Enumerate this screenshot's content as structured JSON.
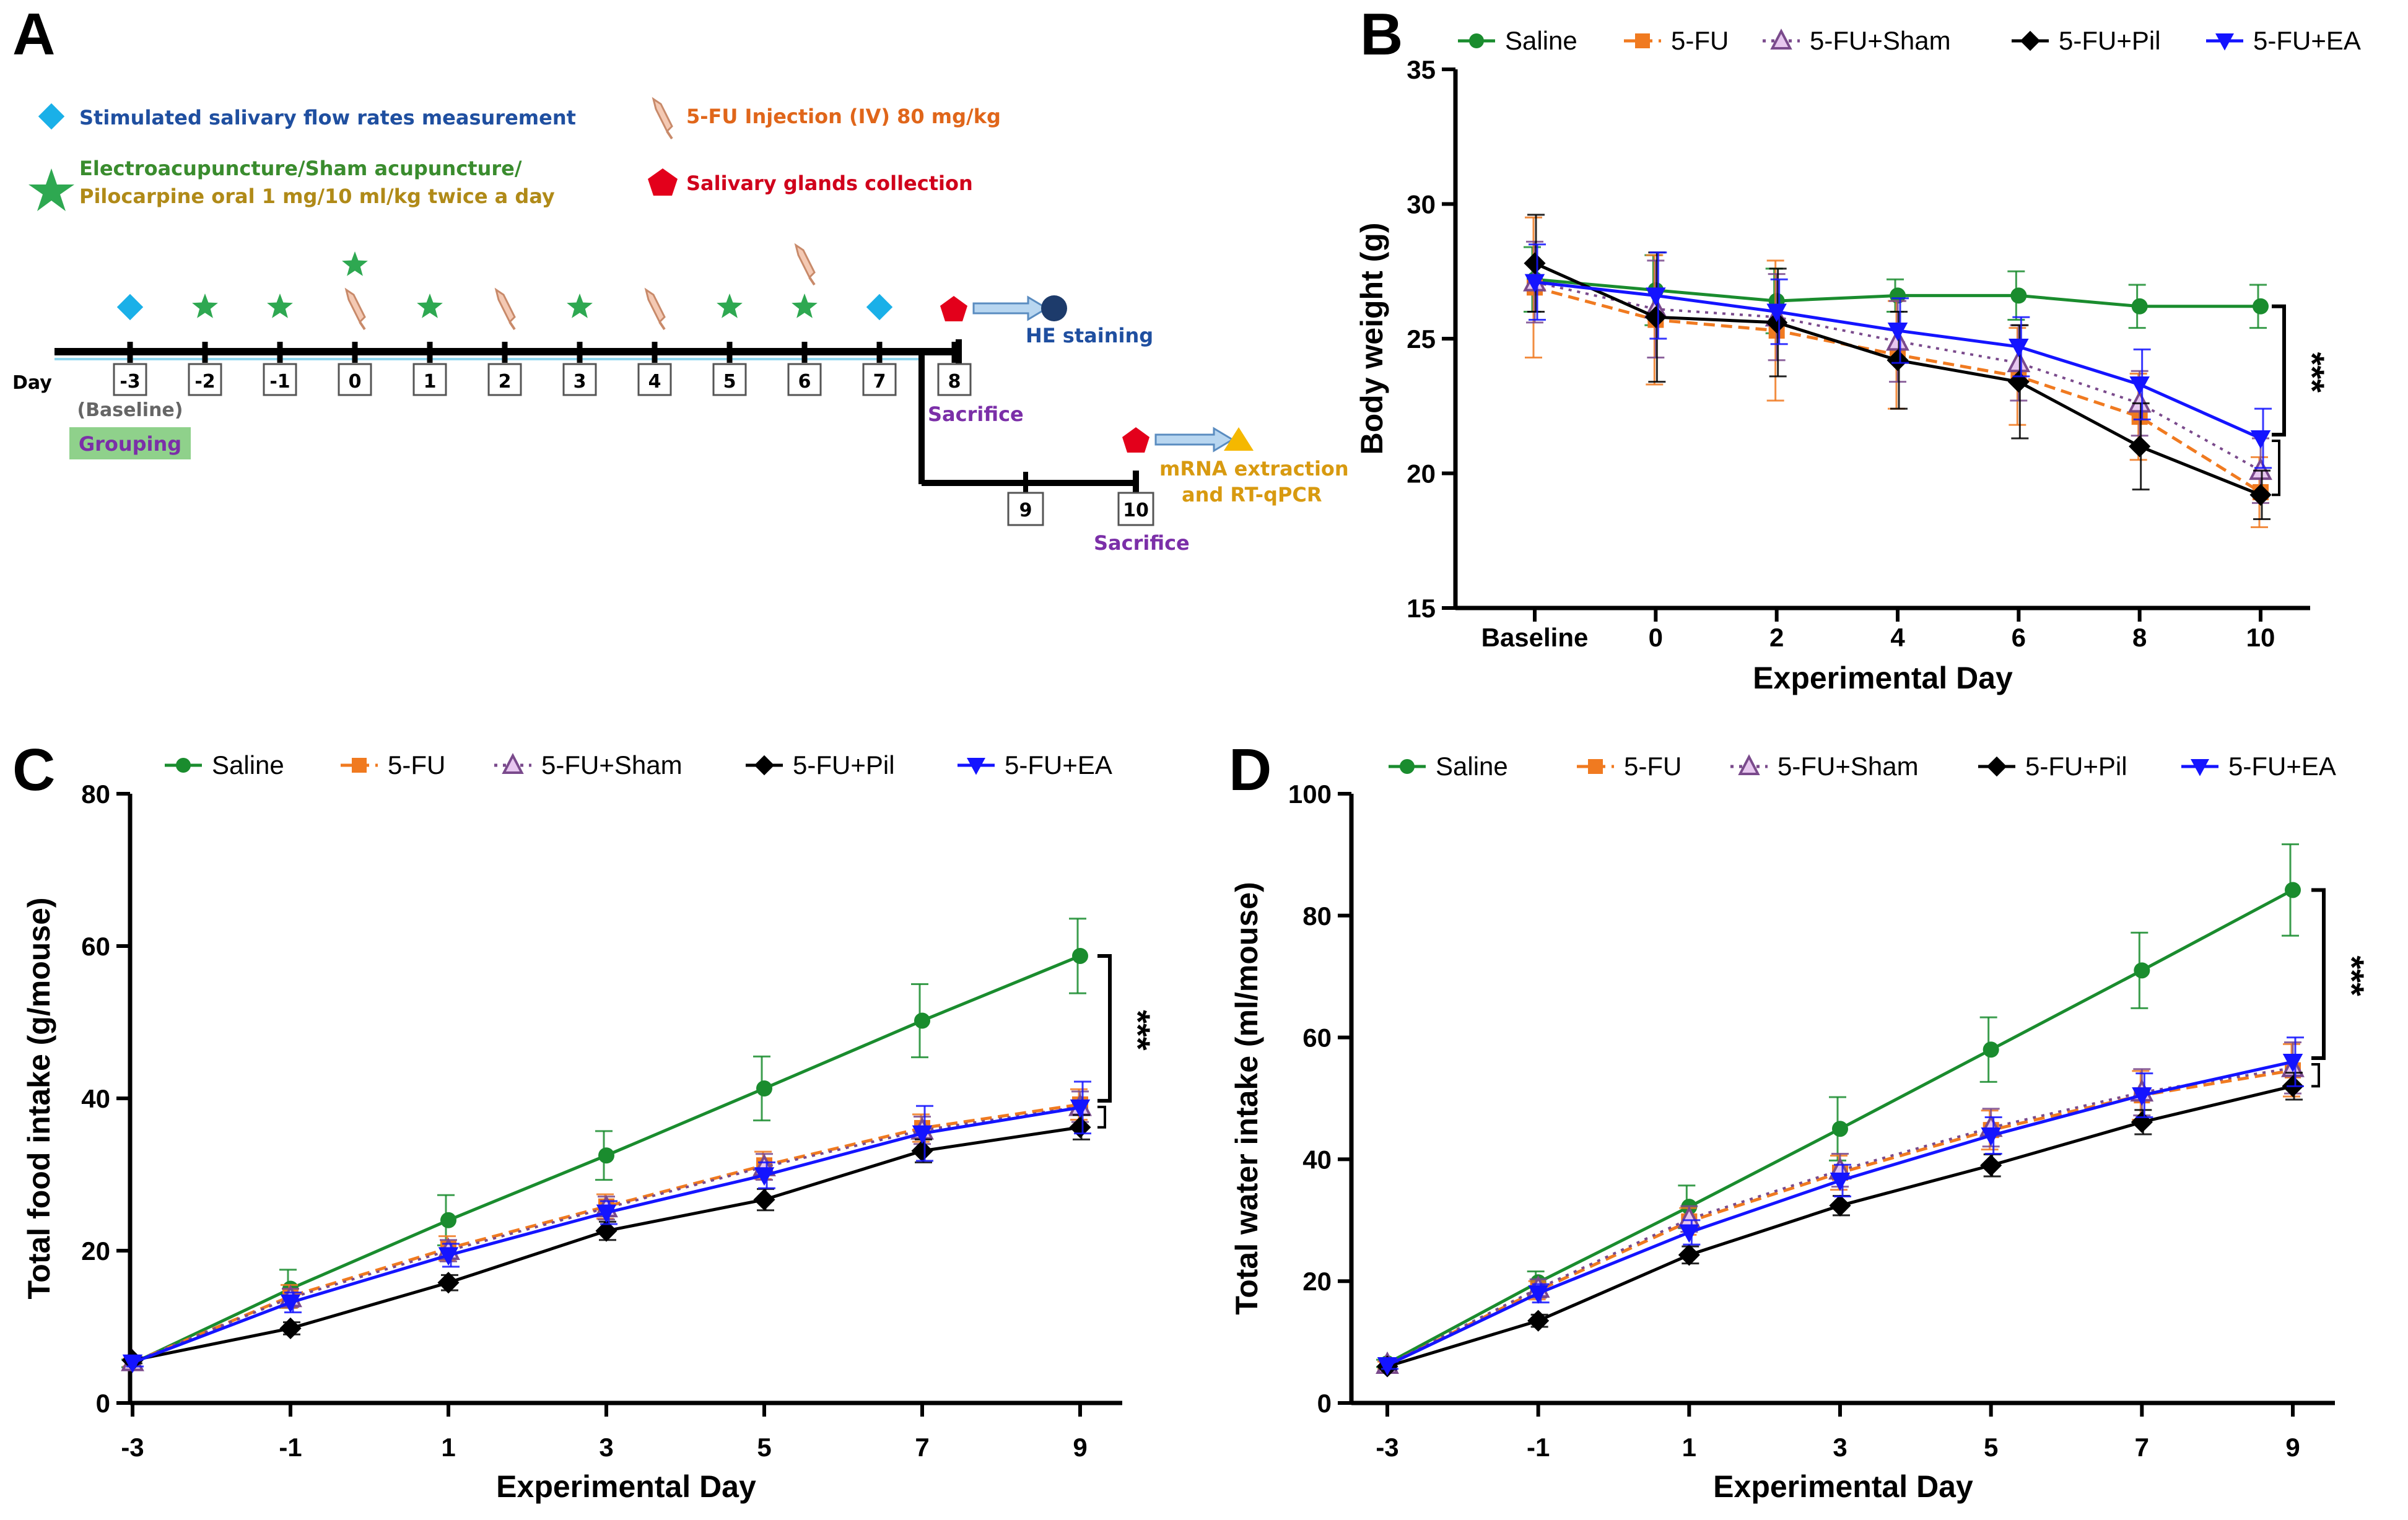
{
  "panels": {
    "A": "A",
    "B": "B",
    "C": "C",
    "D": "D"
  },
  "timeline": {
    "legend": {
      "flow_rate": "Stimulated salivary flow rates measurement",
      "injection": "5-FU Injection (IV) 80 mg/kg",
      "treatment_line1": "Electroacupuncture/Sham acupuncture/",
      "treatment_line2": "Pilocarpine oral 1 mg/10 ml/kg twice a day",
      "collection": "Salivary glands collection"
    },
    "day_label": "Day",
    "days": [
      "-3",
      "-2",
      "-1",
      "0",
      "1",
      "2",
      "3",
      "4",
      "5",
      "6",
      "7",
      "8"
    ],
    "branch_days": [
      "9",
      "10"
    ],
    "baseline_label": "(Baseline)",
    "grouping_label": "Grouping",
    "he_staining": "HE staining",
    "sacrifice_1": "Sacrifice",
    "sacrifice_2": "Sacrifice",
    "mrna_line1": "mRNA extraction",
    "mrna_line2": "and RT-qPCR",
    "colors": {
      "flow": "#1ab0e8",
      "star": "#2ea851",
      "pentagon": "#e3001b",
      "circle": "#1d3b6b",
      "triangle": "#f5b800",
      "grouping_bg": "#8fd18b",
      "flow_text": "#1f4fa0",
      "injection_text": "#e0661a",
      "treatment_text_1": "#3a8c2e",
      "treatment_text_2": "#b08a18",
      "collection_text": "#d0001b",
      "sacrifice_text": "#7b2fa8",
      "mrna_text": "#d89a10"
    }
  },
  "chart_data": [
    {
      "id": "B",
      "type": "line",
      "title": "",
      "xlabel": "Experimental Day",
      "ylabel": "Body weight (g)",
      "categories": [
        "Baseline",
        "0",
        "2",
        "4",
        "6",
        "8",
        "10"
      ],
      "ylim": [
        15,
        35
      ],
      "yticks": [
        15,
        20,
        25,
        30,
        35
      ],
      "significance": "***",
      "series": [
        {
          "name": "Saline",
          "color": "#1a8c2e",
          "marker": "circle",
          "dash": "solid",
          "values": [
            27.2,
            26.8,
            26.4,
            26.6,
            26.6,
            26.2,
            26.2
          ],
          "errors": [
            1.2,
            1.3,
            1.2,
            0.6,
            0.9,
            0.8,
            0.8
          ]
        },
        {
          "name": "5-FU",
          "color": "#f07a20",
          "marker": "square",
          "dash": "dashed",
          "values": [
            26.9,
            25.7,
            25.3,
            24.4,
            23.6,
            22.1,
            19.3
          ],
          "errors": [
            2.6,
            2.4,
            2.6,
            2.0,
            1.8,
            1.6,
            1.3
          ]
        },
        {
          "name": "5-FU+Sham",
          "color": "#7a4a8c",
          "marker": "triangle",
          "dash": "dotted",
          "values": [
            27.1,
            26.1,
            25.8,
            24.9,
            24.1,
            22.6,
            20.1
          ],
          "errors": [
            1.5,
            1.8,
            1.6,
            1.5,
            1.4,
            1.2,
            1.2
          ]
        },
        {
          "name": "5-FU+Pil",
          "color": "#000000",
          "marker": "diamond",
          "dash": "solid",
          "values": [
            27.8,
            25.8,
            25.6,
            24.2,
            23.4,
            21.0,
            19.2
          ],
          "errors": [
            1.8,
            2.4,
            2.0,
            1.8,
            2.1,
            1.6,
            0.9
          ]
        },
        {
          "name": "5-FU+EA",
          "color": "#1414ff",
          "marker": "triangle-down",
          "dash": "solid",
          "values": [
            27.1,
            26.6,
            26.0,
            25.3,
            24.7,
            23.3,
            21.3
          ],
          "errors": [
            1.4,
            1.6,
            1.2,
            1.2,
            1.1,
            1.3,
            1.1
          ]
        }
      ]
    },
    {
      "id": "C",
      "type": "line",
      "title": "",
      "xlabel": "Experimental  Day",
      "ylabel": "Total food intake (g/mouse)",
      "categories": [
        "-3",
        "-1",
        "1",
        "3",
        "5",
        "7",
        "9"
      ],
      "ylim": [
        0,
        80
      ],
      "yticks": [
        0,
        20,
        40,
        60,
        80
      ],
      "significance": "***",
      "series": [
        {
          "name": "Saline",
          "color": "#1a8c2e",
          "marker": "circle",
          "dash": "solid",
          "values": [
            5.2,
            15.0,
            24.0,
            32.5,
            41.3,
            50.2,
            58.7
          ],
          "errors": [
            0.5,
            2.5,
            3.3,
            3.2,
            4.2,
            4.8,
            4.9
          ]
        },
        {
          "name": "5-FU",
          "color": "#f07a20",
          "marker": "square",
          "dash": "dashed",
          "values": [
            5.3,
            14.0,
            20.3,
            25.8,
            31.2,
            36.1,
            39.2
          ],
          "errors": [
            0.5,
            1.5,
            1.6,
            1.6,
            1.8,
            1.8,
            2.0
          ]
        },
        {
          "name": "5-FU+Sham",
          "color": "#7a4a8c",
          "marker": "triangle",
          "dash": "dotted",
          "values": [
            5.4,
            13.8,
            20.0,
            25.6,
            31.0,
            35.8,
            38.9
          ],
          "errors": [
            0.5,
            1.2,
            1.4,
            1.5,
            1.7,
            1.8,
            2.0
          ]
        },
        {
          "name": "5-FU+Pil",
          "color": "#000000",
          "marker": "diamond",
          "dash": "solid",
          "values": [
            5.6,
            9.8,
            15.8,
            22.6,
            26.7,
            33.1,
            36.2
          ],
          "errors": [
            0.4,
            0.8,
            1.0,
            1.2,
            1.4,
            1.5,
            1.6
          ]
        },
        {
          "name": "5-FU+EA",
          "color": "#1414ff",
          "marker": "triangle-down",
          "dash": "solid",
          "values": [
            5.3,
            13.2,
            19.4,
            25.0,
            29.9,
            35.4,
            38.8
          ],
          "errors": [
            0.5,
            1.3,
            1.5,
            1.5,
            1.7,
            3.6,
            3.4
          ]
        }
      ]
    },
    {
      "id": "D",
      "type": "line",
      "title": "",
      "xlabel": "Experimental Day",
      "ylabel": "Total water intake (ml/mouse)",
      "categories": [
        "-3",
        "-1",
        "1",
        "3",
        "5",
        "7",
        "9"
      ],
      "ylim": [
        0,
        100
      ],
      "yticks": [
        0,
        20,
        40,
        60,
        80,
        100
      ],
      "significance": "***",
      "series": [
        {
          "name": "Saline",
          "color": "#1a8c2e",
          "marker": "circle",
          "dash": "solid",
          "values": [
            6.5,
            19.8,
            32.2,
            45.0,
            58.0,
            71.0,
            84.2
          ],
          "errors": [
            0.6,
            1.8,
            3.5,
            5.2,
            5.3,
            6.2,
            7.5
          ]
        },
        {
          "name": "5-FU",
          "color": "#f07a20",
          "marker": "square",
          "dash": "dashed",
          "values": [
            6.2,
            18.5,
            29.8,
            37.8,
            44.8,
            50.5,
            54.6
          ],
          "errors": [
            0.6,
            1.5,
            2.2,
            2.8,
            3.2,
            4.0,
            4.3
          ]
        },
        {
          "name": "5-FU+Sham",
          "color": "#7a4a8c",
          "marker": "triangle",
          "dash": "dotted",
          "values": [
            6.3,
            18.8,
            30.2,
            38.2,
            45.2,
            51.0,
            55.0
          ],
          "errors": [
            0.6,
            1.5,
            2.1,
            2.7,
            3.1,
            3.8,
            4.2
          ]
        },
        {
          "name": "5-FU+Pil",
          "color": "#000000",
          "marker": "diamond",
          "dash": "solid",
          "values": [
            6.0,
            13.5,
            24.3,
            32.4,
            39.0,
            46.1,
            52.0
          ],
          "errors": [
            0.5,
            1.0,
            1.4,
            1.6,
            1.8,
            2.0,
            2.2
          ]
        },
        {
          "name": "5-FU+EA",
          "color": "#1414ff",
          "marker": "triangle-down",
          "dash": "solid",
          "values": [
            6.2,
            18.0,
            28.0,
            36.5,
            43.9,
            50.5,
            56.0
          ],
          "errors": [
            0.6,
            1.5,
            2.0,
            2.6,
            3.0,
            3.6,
            4.0
          ]
        }
      ]
    }
  ]
}
